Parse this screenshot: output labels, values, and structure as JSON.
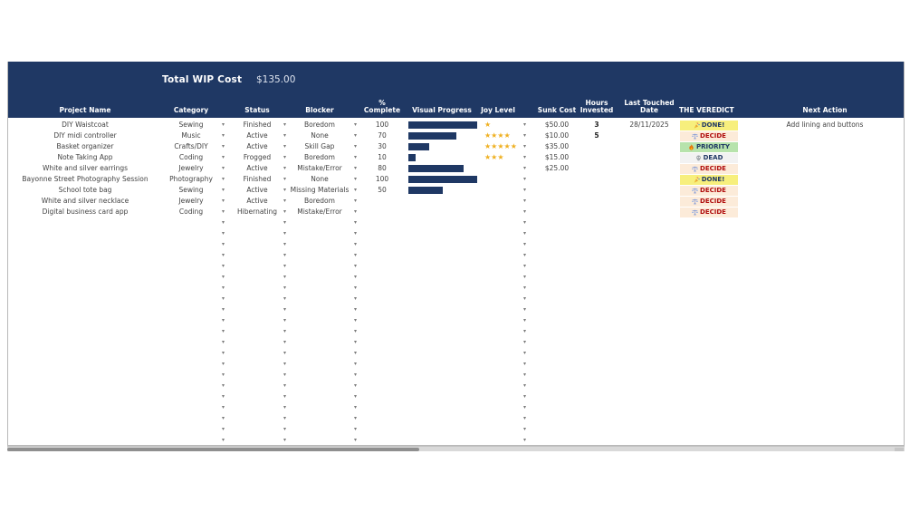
{
  "toolbar": {
    "total_wip_label": "Total WIP Cost",
    "total_wip_value": "$135.00"
  },
  "colors": {
    "header_navy": "#1f3864",
    "progress_bar": "#1f3864",
    "star_gold": "#efb021"
  },
  "table": {
    "columns": [
      {
        "id": "project",
        "label": "Project Name"
      },
      {
        "id": "category",
        "label": "Category"
      },
      {
        "id": "status",
        "label": "Status"
      },
      {
        "id": "blocker",
        "label": "Blocker"
      },
      {
        "id": "pct",
        "label": "% Complete"
      },
      {
        "id": "visual",
        "label": "Visual Progress"
      },
      {
        "id": "joy",
        "label": "Joy Level"
      },
      {
        "id": "sunk",
        "label": "Sunk Cost"
      },
      {
        "id": "hours",
        "label": "Hours Invested"
      },
      {
        "id": "touched",
        "label": "Last Touched Date"
      },
      {
        "id": "verdict",
        "label": "THE VEREDICT"
      },
      {
        "id": "next",
        "label": "Next Action"
      }
    ],
    "rows": [
      {
        "project": "DIY Waistcoat",
        "category": "Sewing",
        "status": "Finished",
        "blocker": "Boredom",
        "pct": 100,
        "joy": 1,
        "sunk": "$50.00",
        "hours": "3",
        "touched": "28/11/2025",
        "verdict": "done",
        "next": "Add lining and buttons"
      },
      {
        "project": "DIY midi controller",
        "category": "Music",
        "status": "Active",
        "blocker": "None",
        "pct": 70,
        "joy": 4,
        "sunk": "$10.00",
        "hours": "5",
        "touched": "",
        "verdict": "decide",
        "next": ""
      },
      {
        "project": "Basket organizer",
        "category": "Crafts/DIY",
        "status": "Active",
        "blocker": "Skill Gap",
        "pct": 30,
        "joy": 5,
        "sunk": "$35.00",
        "hours": "",
        "touched": "",
        "verdict": "priority",
        "next": ""
      },
      {
        "project": "Note Taking App",
        "category": "Coding",
        "status": "Frogged",
        "blocker": "Boredom",
        "pct": 10,
        "joy": 3,
        "sunk": "$15.00",
        "hours": "",
        "touched": "",
        "verdict": "dead",
        "next": ""
      },
      {
        "project": "White and silver earrings",
        "category": "Jewelry",
        "status": "Active",
        "blocker": "Mistake/Error",
        "pct": 80,
        "joy": 0,
        "sunk": "$25.00",
        "hours": "",
        "touched": "",
        "verdict": "decide",
        "next": ""
      },
      {
        "project": "Bayonne Street Photography Session",
        "category": "Photography",
        "status": "Finished",
        "blocker": "None",
        "pct": 100,
        "joy": 0,
        "sunk": "",
        "hours": "",
        "touched": "",
        "verdict": "done",
        "next": ""
      },
      {
        "project": "School tote bag",
        "category": "Sewing",
        "status": "Active",
        "blocker": "Missing Materials",
        "pct": 50,
        "joy": 0,
        "sunk": "",
        "hours": "",
        "touched": "",
        "verdict": "decide",
        "next": ""
      },
      {
        "project": "White and silver necklace",
        "category": "Jewelry",
        "status": "Active",
        "blocker": "Boredom",
        "pct": null,
        "joy": 0,
        "sunk": "",
        "hours": "",
        "touched": "",
        "verdict": "decide",
        "next": ""
      },
      {
        "project": "Digital business card app",
        "category": "Coding",
        "status": "Hibernating",
        "blocker": "Mistake/Error",
        "pct": null,
        "joy": 0,
        "sunk": "",
        "hours": "",
        "touched": "",
        "verdict": "decide",
        "next": ""
      }
    ],
    "empty_row_count": 21,
    "verdicts": {
      "done": {
        "label": "DONE!",
        "icon": "party-popper-icon",
        "bg": "#f7ef7d",
        "fg": "#1f3864"
      },
      "decide": {
        "label": "DECIDE",
        "icon": "scales-icon",
        "bg": "#fcebd9",
        "fg": "#b00d0d"
      },
      "priority": {
        "label": "PRIORITY",
        "icon": "fire-icon",
        "bg": "#b7e3ac",
        "fg": "#1f3864"
      },
      "dead": {
        "label": "DEAD",
        "icon": "skull-icon",
        "bg": "#f2f2f2",
        "fg": "#1f3864"
      }
    }
  },
  "star_char": "★",
  "dropdown_char": "▾"
}
